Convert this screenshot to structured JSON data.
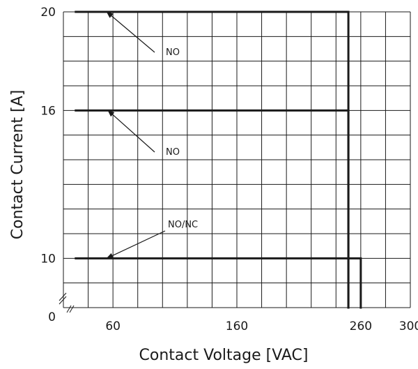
{
  "chart_data": {
    "type": "line",
    "title": "",
    "xlabel": "Contact Voltage [VAC]",
    "ylabel": "Contact Current [A]",
    "x_tick_labels": [
      60,
      160,
      260,
      300
    ],
    "y_tick_labels": [
      0,
      10,
      16,
      20
    ],
    "axis_break": true,
    "grid": true,
    "series": [
      {
        "points": [
          [
            30,
            20
          ],
          [
            250,
            20
          ],
          [
            250,
            0
          ]
        ]
      },
      {
        "points": [
          [
            30,
            16
          ],
          [
            250,
            16
          ],
          [
            250,
            0
          ]
        ]
      },
      {
        "points": [
          [
            30,
            10
          ],
          [
            260,
            10
          ],
          [
            260,
            0
          ]
        ]
      }
    ],
    "annotations": [
      {
        "text": "NO",
        "target": [
          55,
          20
        ]
      },
      {
        "text": "NO",
        "target": [
          56,
          16
        ]
      },
      {
        "text": "NO/NC",
        "target": [
          55,
          10
        ]
      }
    ]
  }
}
